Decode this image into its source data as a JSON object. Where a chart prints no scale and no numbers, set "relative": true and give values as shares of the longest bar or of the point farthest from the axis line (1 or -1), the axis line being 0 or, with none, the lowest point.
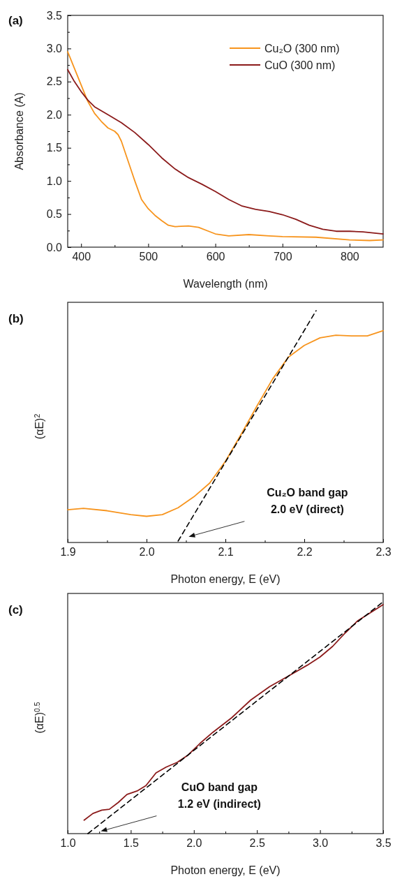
{
  "chart_data": [
    {
      "type": "line",
      "title": "(a)",
      "xlabel": "Wavelength (nm)",
      "ylabel": "Absorbance (A)",
      "xlim": [
        380,
        850
      ],
      "ylim": [
        0,
        3.5
      ],
      "xticks": [
        400,
        {
          "value": 450,
          "label": null
        },
        500,
        {
          "value": 550,
          "label": null
        },
        600,
        {
          "value": 650,
          "label": null
        },
        700,
        {
          "value": 750,
          "label": null
        },
        800
      ],
      "yticks": [
        {
          "value": 0,
          "label": "0.0"
        },
        {
          "value": 0.25,
          "label": null
        },
        0.5,
        {
          "value": 0.75,
          "label": null
        },
        {
          "value": 1,
          "label": "1.0"
        },
        {
          "value": 1.25,
          "label": null
        },
        1.5,
        {
          "value": 1.75,
          "label": null
        },
        {
          "value": 2,
          "label": "2.0"
        },
        {
          "value": 2.25,
          "label": null
        },
        2.5,
        {
          "value": 2.75,
          "label": null
        },
        {
          "value": 3,
          "label": "3.0"
        },
        {
          "value": 3.25,
          "label": null
        },
        3.5
      ],
      "legend": "top right",
      "grid": false,
      "series": [
        {
          "name": "Cu₂O (300 nm)",
          "color": "#f7941d",
          "x": [
            380,
            390,
            400,
            410,
            420,
            430,
            440,
            450,
            455,
            460,
            470,
            480,
            490,
            500,
            510,
            520,
            530,
            540,
            560,
            575,
            590,
            600,
            620,
            650,
            680,
            700,
            750,
            800,
            830,
            850
          ],
          "values": [
            2.95,
            2.7,
            2.45,
            2.2,
            2.02,
            1.9,
            1.8,
            1.75,
            1.7,
            1.6,
            1.3,
            1.0,
            0.72,
            0.58,
            0.48,
            0.4,
            0.33,
            0.31,
            0.32,
            0.3,
            0.24,
            0.2,
            0.17,
            0.19,
            0.17,
            0.16,
            0.15,
            0.11,
            0.1,
            0.11
          ]
        },
        {
          "name": "CuO (300 nm)",
          "color": "#8b1a1a",
          "x": [
            380,
            390,
            400,
            410,
            420,
            440,
            460,
            480,
            500,
            520,
            540,
            560,
            580,
            600,
            620,
            640,
            660,
            680,
            700,
            720,
            740,
            760,
            780,
            800,
            820,
            840,
            850
          ],
          "values": [
            2.68,
            2.5,
            2.35,
            2.22,
            2.12,
            2.0,
            1.88,
            1.73,
            1.55,
            1.35,
            1.18,
            1.05,
            0.95,
            0.84,
            0.72,
            0.62,
            0.57,
            0.54,
            0.49,
            0.42,
            0.33,
            0.27,
            0.24,
            0.24,
            0.23,
            0.21,
            0.2
          ]
        }
      ]
    },
    {
      "type": "line",
      "title": "(b)",
      "xlabel": "Photon energy, E (eV)",
      "ylabel": "(αE)$^{2}$",
      "relative": true,
      "xlim": [
        1.9,
        2.3
      ],
      "xticks": [
        1.9,
        {
          "value": 1.95,
          "label": null
        },
        {
          "value": 2,
          "label": "2.0"
        },
        {
          "value": 2.05,
          "label": null
        },
        2.1,
        {
          "value": 2.15,
          "label": null
        },
        2.2,
        {
          "value": 2.25,
          "label": null
        },
        2.3
      ],
      "grid": false,
      "annotations": [
        "Cu₂O band gap\n2.0 eV (direct)"
      ],
      "series": [
        {
          "color": "#f7941d",
          "x": [
            1.9,
            1.92,
            1.95,
            1.98,
            2.0,
            2.02,
            2.04,
            2.06,
            2.08,
            2.1,
            2.12,
            2.14,
            2.16,
            2.18,
            2.2,
            2.22,
            2.24,
            2.26,
            2.28,
            2.3
          ],
          "values": [
            0.141,
            0.147,
            0.137,
            0.12,
            0.113,
            0.12,
            0.15,
            0.197,
            0.256,
            0.35,
            0.467,
            0.589,
            0.706,
            0.8,
            0.85,
            0.883,
            0.894,
            0.891,
            0.891,
            0.914
          ]
        },
        {
          "type": "line",
          "line_style": "dashed",
          "color": "#000000",
          "x": [
            2.04,
            2.215
          ],
          "values": [
            0.006,
            1
          ]
        }
      ]
    },
    {
      "type": "line",
      "title": "(c)",
      "xlabel": "Photon energy, E (eV)",
      "ylabel": "(αE)$^{0.5}$",
      "relative": true,
      "xlim": [
        1.0,
        3.5
      ],
      "xticks": [
        {
          "value": 1,
          "label": "1.0"
        },
        {
          "value": 1.25,
          "label": null
        },
        1.5,
        {
          "value": 1.75,
          "label": null
        },
        {
          "value": 2,
          "label": "2.0"
        },
        {
          "value": 2.25,
          "label": null
        },
        2.5,
        {
          "value": 2.75,
          "label": null
        },
        {
          "value": 3,
          "label": "3.0"
        },
        {
          "value": 3.25,
          "label": null
        },
        3.5
      ],
      "grid": false,
      "annotations": [
        "CuO band gap\n1.2 eV (indirect)"
      ],
      "series": [
        {
          "color": "#8b1a1a",
          "x": [
            1.13,
            1.2,
            1.27,
            1.33,
            1.4,
            1.47,
            1.55,
            1.62,
            1.7,
            1.78,
            1.87,
            1.95,
            2.05,
            2.15,
            2.3,
            2.45,
            2.6,
            2.75,
            2.9,
            3.0,
            3.1,
            3.2,
            3.3,
            3.4,
            3.5
          ],
          "values": [
            0.058,
            0.087,
            0.101,
            0.105,
            0.134,
            0.169,
            0.184,
            0.207,
            0.262,
            0.287,
            0.308,
            0.337,
            0.39,
            0.437,
            0.5,
            0.576,
            0.634,
            0.68,
            0.727,
            0.762,
            0.808,
            0.866,
            0.919,
            0.953,
            0.988
          ]
        },
        {
          "type": "line",
          "line_style": "dashed",
          "color": "#000000",
          "x": [
            1.16,
            3.5
          ],
          "values": [
            0,
            1
          ]
        }
      ]
    }
  ]
}
